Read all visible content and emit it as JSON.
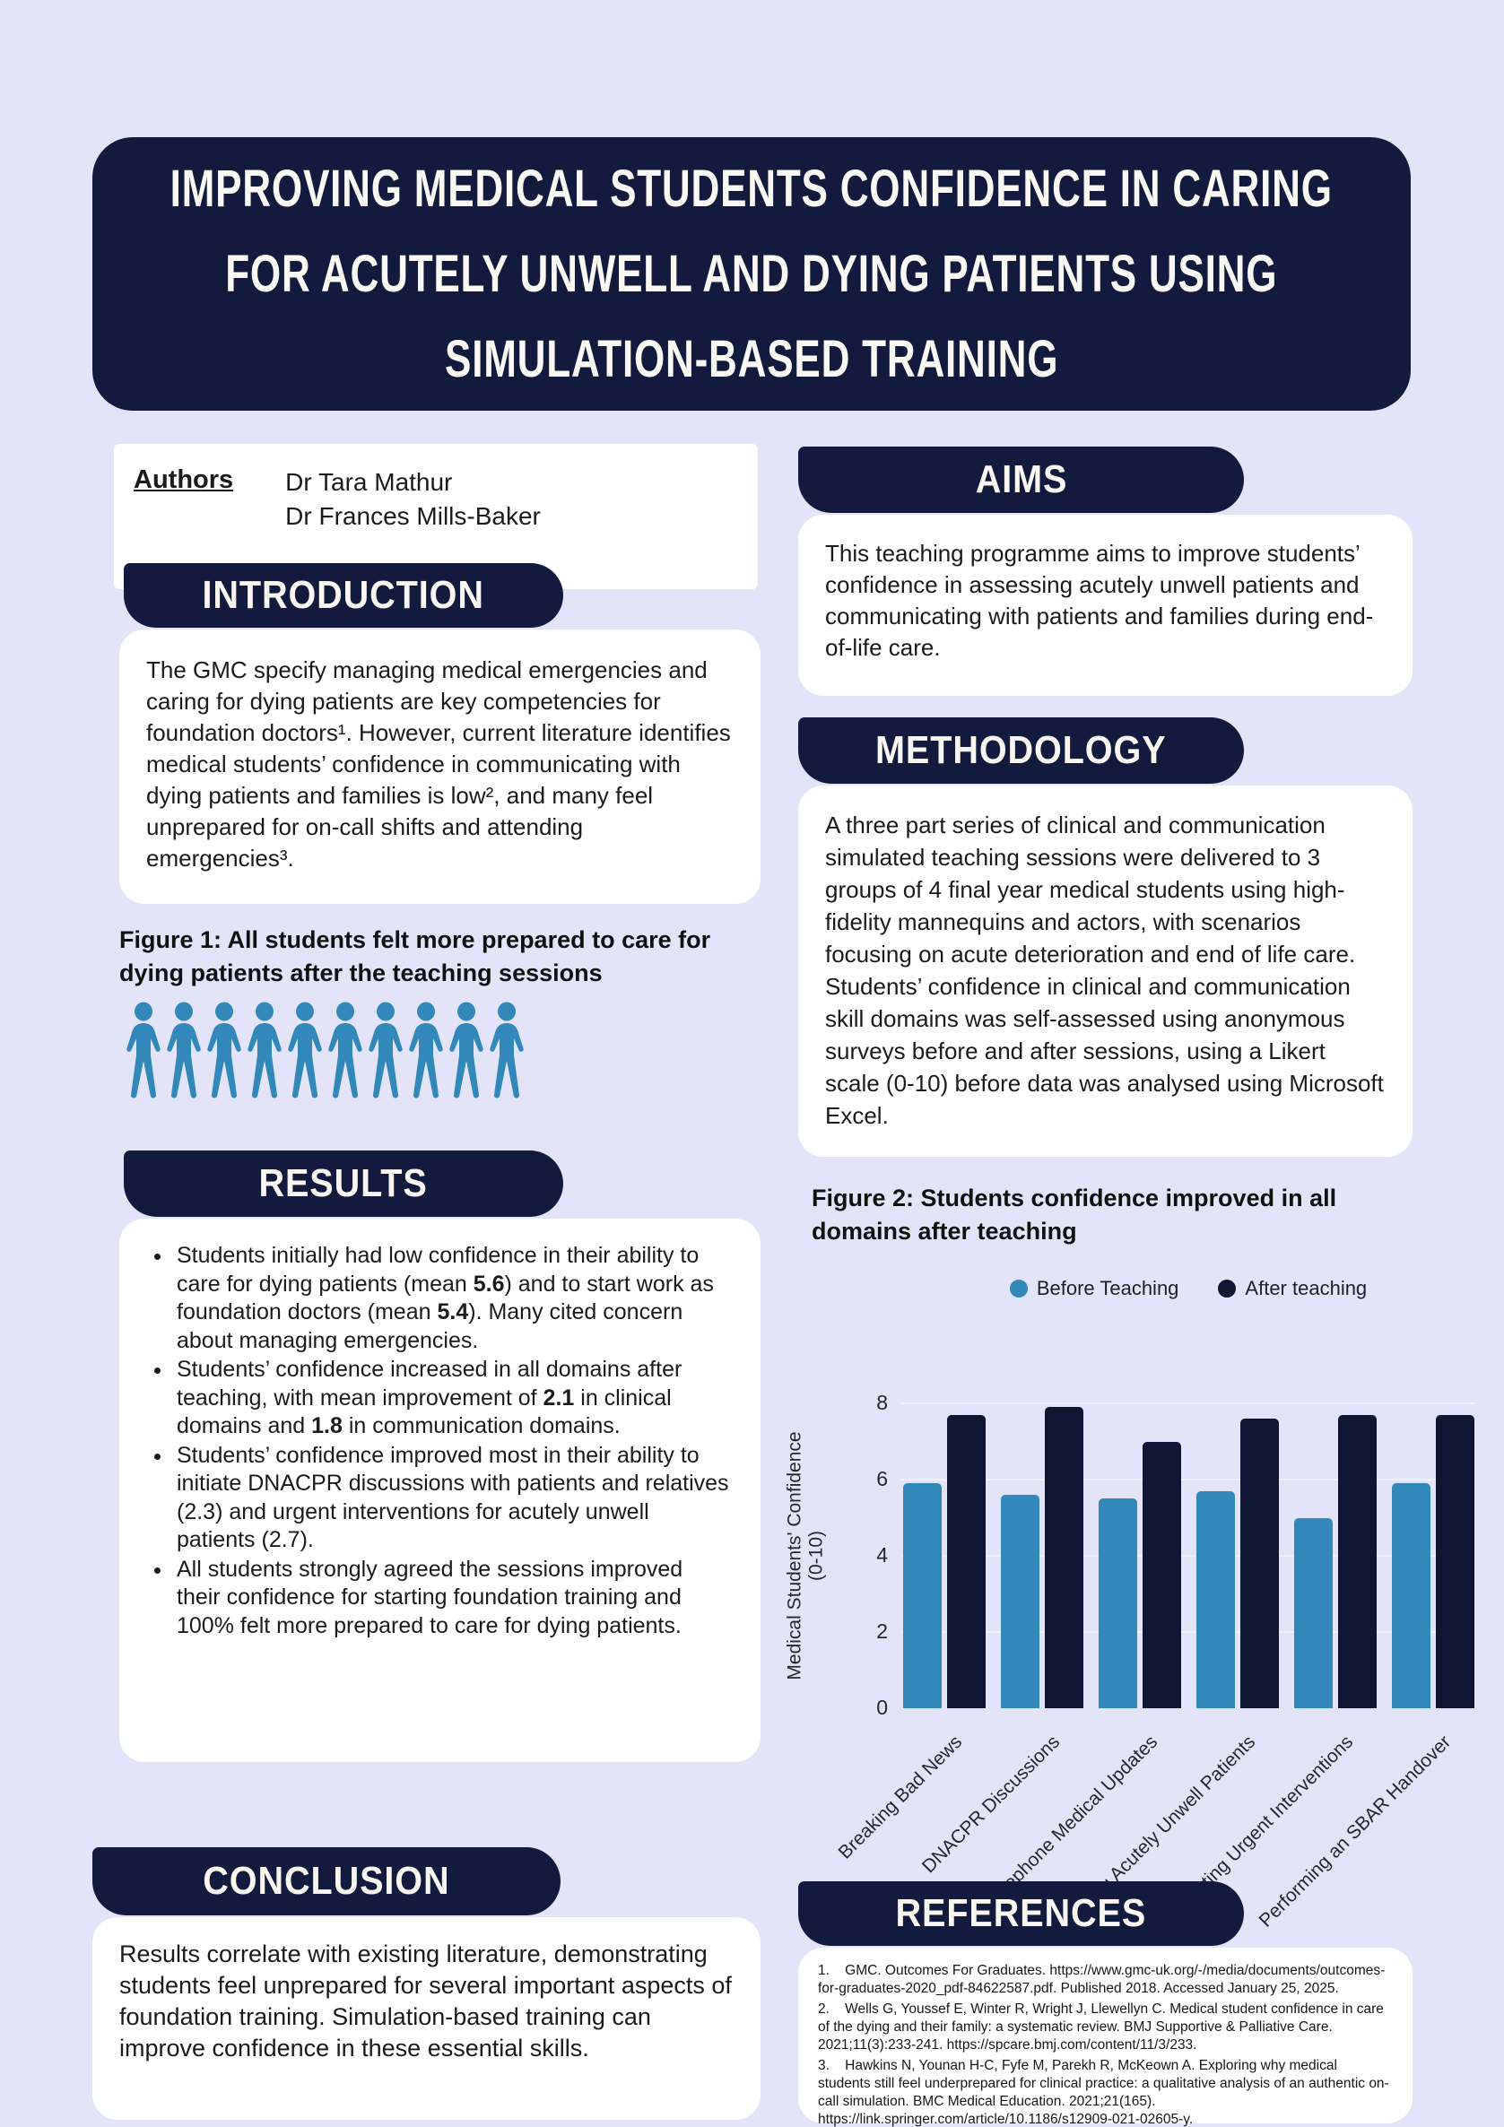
{
  "colors": {
    "background": "#e3e4f8",
    "navy": "#121a3e",
    "bar_navy": "#0e1634",
    "blue": "#3289b9",
    "card": "#ffffff"
  },
  "title": {
    "lines": [
      "IMPROVING MEDICAL STUDENTS CONFIDENCE IN CARING",
      "FOR ACUTELY UNWELL AND DYING PATIENTS USING",
      "SIMULATION-BASED TRAINING"
    ]
  },
  "authors": {
    "label": "Authors",
    "names": [
      "Dr Tara Mathur",
      "Dr Frances Mills-Baker"
    ]
  },
  "sections": {
    "introduction": {
      "heading": "INTRODUCTION",
      "body": "The GMC specify managing medical emergencies and caring for dying patients are key competencies for foundation doctors¹. However, current literature identifies medical students’ confidence in communicating with dying patients and families is low², and many feel unprepared for on-call shifts and attending emergencies³."
    },
    "aims": {
      "heading": "AIMS",
      "body": "This teaching programme aims to improve students’ confidence in assessing acutely unwell patients and communicating with patients and families during end-of-life care."
    },
    "methodology": {
      "heading": "METHODOLOGY",
      "body": "A three part series of clinical and communication simulated teaching sessions were delivered to 3 groups of 4 final year medical students using high-fidelity mannequins and actors, with scenarios focusing on acute deterioration and end of life care. Students’ confidence in clinical and communication skill domains was self-assessed using anonymous surveys before and after sessions, using a Likert scale (0-10) before data was analysed using Microsoft Excel."
    },
    "results": {
      "heading": "RESULTS",
      "bullets": [
        [
          {
            "t": "Students initially had low confidence in their ability to care for dying patients (mean "
          },
          {
            "t": "5.6",
            "b": true
          },
          {
            "t": ") and to start work as foundation doctors (mean "
          },
          {
            "t": "5.4",
            "b": true
          },
          {
            "t": "). Many cited concern about managing emergencies."
          }
        ],
        [
          {
            "t": "Students’ confidence increased in all domains after teaching, with mean improvement of "
          },
          {
            "t": "2.1",
            "b": true
          },
          {
            "t": " in clinical domains and "
          },
          {
            "t": "1.8",
            "b": true
          },
          {
            "t": " in communication domains."
          }
        ],
        [
          {
            "t": "Students’ confidence improved most in their ability to initiate DNACPR discussions with patients and relatives (2.3) and urgent interventions for acutely unwell patients (2.7)."
          }
        ],
        [
          {
            "t": "All students strongly agreed the sessions improved their confidence for starting foundation training and 100% felt more prepared to care for dying patients."
          }
        ]
      ]
    },
    "conclusion": {
      "heading": "CONCLUSION",
      "body": "Results correlate with existing literature, demonstrating students feel unprepared for several important aspects of foundation training. Simulation-based training can improve confidence in these essential skills."
    },
    "references": {
      "heading": "REFERENCES",
      "items": [
        {
          "num": "1.",
          "text": "GMC. Outcomes For Graduates. https://www.gmc-uk.org/-/media/documents/outcomes-for-graduates-2020_pdf-84622587.pdf. Published 2018. Accessed January 25, 2025."
        },
        {
          "num": "2.",
          "text": "Wells G, Youssef E, Winter R, Wright J, Llewellyn C. Medical student confidence in care of the dying and their family: a systematic review. BMJ Supportive & Palliative Care. 2021;11(3):233-241. https://spcare.bmj.com/content/11/3/233."
        },
        {
          "num": "3.",
          "text": "Hawkins N, Younan H-C, Fyfe M, Parekh R, McKeown A. Exploring why medical students still feel underprepared for clinical practice: a qualitative analysis of an authentic on-call simulation. BMC Medical Education. 2021;21(165). https://link.springer.com/article/10.1186/s12909-021-02605-y."
        }
      ]
    }
  },
  "figure1": {
    "caption": "Figure 1: All students felt more prepared to care for dying patients after the teaching sessions",
    "person_count": 10,
    "person_color": "#3289b9"
  },
  "figure2": {
    "caption": "Figure 2: Students confidence improved in all domains after teaching"
  },
  "chart_data": {
    "type": "bar",
    "title": "Figure 2: Students confidence improved in all domains after teaching",
    "categories": [
      "Breaking Bad News",
      "DNACPR Discussions",
      "Telephone Medical Updates",
      "Assessing Acutely Unwell Patients",
      "Initiating Urgent Interventions",
      "Performing an SBAR Handover"
    ],
    "series": [
      {
        "name": "Before Teaching",
        "color": "#3289b9",
        "values": [
          5.9,
          5.6,
          5.5,
          5.7,
          5.0,
          5.9
        ]
      },
      {
        "name": "After teaching",
        "color": "#0e1634",
        "values": [
          7.7,
          7.9,
          7.0,
          7.6,
          7.7,
          7.7
        ]
      }
    ],
    "xlabel": "",
    "ylabel": "Medical Students' Confidence (0-10)",
    "ylabel_lines": [
      "Medical Students' Confidence",
      "(0-10)"
    ],
    "yticks": [
      0,
      2,
      4,
      6,
      8
    ],
    "ylim": [
      0,
      8
    ],
    "grid": true,
    "legend_position": "top"
  }
}
